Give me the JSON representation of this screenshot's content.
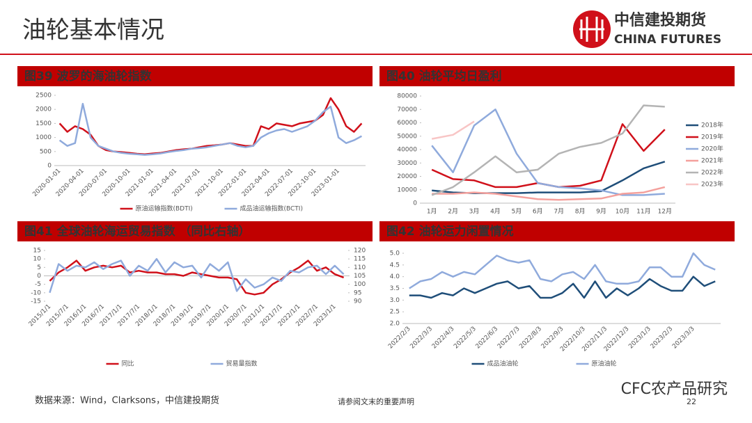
{
  "header": {
    "title": "油轮基本情况",
    "logo_cn": "中信建投期货",
    "logo_en": "CHINA FUTURES"
  },
  "footer": {
    "source": "数据来源：Wind，Clarksons，中信建投期货",
    "disclaimer": "请参阅文末的重要声明",
    "page": "22",
    "watermark": "CFC农产品研究"
  },
  "chart_data": [
    {
      "type": "line",
      "title": "图39 波罗的海油轮指数",
      "legend": "bottom",
      "rotate_x": true,
      "categories": [
        "2020-01-01",
        null,
        null,
        "2020-04-01",
        null,
        null,
        "2020-07-01",
        null,
        null,
        "2020-10-01",
        null,
        null,
        "2021-01-01",
        null,
        null,
        "2021-04-01",
        null,
        null,
        "2021-07-01",
        null,
        null,
        "2021-10-01",
        null,
        null,
        "2022-01-01",
        null,
        null,
        "2022-04-01",
        null,
        null,
        "2022-07-01",
        null,
        null,
        "2022-10-01",
        null,
        null,
        "2023-01-01",
        null,
        null,
        null
      ],
      "ylim": [
        0,
        2500
      ],
      "yticks": [
        0,
        500,
        1000,
        1500,
        2000,
        2500
      ],
      "series": [
        {
          "name": "原油运输指数(BDTI)",
          "color": "#d0101a",
          "values": [
            1500,
            1200,
            1400,
            1300,
            1100,
            700,
            550,
            500,
            480,
            450,
            420,
            400,
            430,
            450,
            500,
            550,
            580,
            600,
            650,
            700,
            720,
            750,
            800,
            750,
            700,
            700,
            1400,
            1300,
            1500,
            1450,
            1400,
            1500,
            1550,
            1600,
            1800,
            2400,
            2000,
            1400,
            1200,
            1500
          ]
        },
        {
          "name": "成品油运输指数(BCTI)",
          "color": "#8faadc",
          "values": [
            900,
            700,
            800,
            2200,
            1000,
            700,
            600,
            500,
            450,
            420,
            400,
            380,
            400,
            430,
            480,
            520,
            550,
            600,
            620,
            650,
            700,
            750,
            800,
            700,
            650,
            700,
            1000,
            1150,
            1250,
            1300,
            1200,
            1300,
            1400,
            1600,
            1900,
            2100,
            1000,
            800,
            900,
            1050
          ]
        }
      ]
    },
    {
      "type": "line",
      "title": "图40 油轮平均日盈利",
      "legend": "right",
      "rotate_x": false,
      "categories": [
        "1月",
        "2月",
        "3月",
        "4月",
        "5月",
        "6月",
        "7月",
        "8月",
        "9月",
        "10月",
        "11月",
        "12月"
      ],
      "ylim": [
        0,
        80000
      ],
      "yticks": [
        0,
        10000,
        20000,
        30000,
        40000,
        50000,
        60000,
        70000,
        80000
      ],
      "series": [
        {
          "name": "2018年",
          "color": "#1f4e79",
          "values": [
            9500,
            8000,
            7500,
            7500,
            7500,
            8000,
            8000,
            8000,
            9000,
            17000,
            26000,
            31000
          ]
        },
        {
          "name": "2019年",
          "color": "#d0101a",
          "values": [
            25000,
            18000,
            17000,
            12000,
            12000,
            15000,
            12000,
            13000,
            17000,
            59000,
            39000,
            55000
          ]
        },
        {
          "name": "2020年",
          "color": "#8faadc",
          "values": [
            43000,
            23000,
            58000,
            70000,
            37000,
            15000,
            12000,
            11000,
            9500,
            6000,
            6000,
            7000
          ]
        },
        {
          "name": "2021年",
          "color": "#f4a09c",
          "values": [
            7000,
            7000,
            8000,
            7000,
            5000,
            3000,
            2500,
            3000,
            3500,
            7000,
            8000,
            12000
          ]
        },
        {
          "name": "2022年",
          "color": "#b4b4b4",
          "values": [
            6000,
            12000,
            23000,
            35000,
            23000,
            25000,
            37000,
            42000,
            45000,
            52000,
            73000,
            72000
          ]
        },
        {
          "name": "2023年",
          "color": "#f8c5c5",
          "values": [
            48000,
            51000,
            61000,
            null,
            null,
            null,
            null,
            null,
            null,
            null,
            null,
            null
          ]
        }
      ]
    },
    {
      "type": "line",
      "title": "图41 全球油轮海运贸易指数 （同比右轴）",
      "legend": "bottom",
      "rotate_x": true,
      "categories": [
        "2015/1/1",
        null,
        "2015/7/1",
        null,
        "2016/1/1",
        null,
        "2016/7/1",
        null,
        "2017/1/1",
        null,
        "2017/7/1",
        null,
        "2018/1/1",
        null,
        "2018/7/1",
        null,
        "2019/1/1",
        null,
        "2019/7/1",
        null,
        "2020/1/1",
        null,
        "2020/7/1",
        null,
        "2021/1/1",
        null,
        "2021/7/1",
        null,
        "2022/1/1",
        null,
        "2022/7/1",
        null,
        "2023/1/1",
        null
      ],
      "ylim": [
        -15,
        15
      ],
      "yticks": [
        -15,
        -10,
        -5,
        0,
        5,
        10,
        15
      ],
      "y2lim": [
        90,
        120
      ],
      "y2ticks": [
        90,
        95,
        100,
        105,
        110,
        115,
        120
      ],
      "series": [
        {
          "name": "同比",
          "color": "#d0101a",
          "values": [
            -3,
            2,
            5,
            9,
            3,
            5,
            6,
            5,
            6,
            2,
            3,
            2,
            2,
            1,
            1,
            0,
            2,
            1,
            0,
            -1,
            -1,
            -2,
            -10,
            -11,
            -10,
            -5,
            -2,
            2,
            5,
            9,
            3,
            5,
            1,
            -1
          ]
        },
        {
          "name": "贸易量指数",
          "color": "#8faadc",
          "axis": "y2",
          "values": [
            95,
            112,
            108,
            111,
            110,
            113,
            109,
            112,
            114,
            105,
            111,
            108,
            115,
            107,
            113,
            110,
            111,
            104,
            112,
            108,
            113,
            96,
            103,
            98,
            100,
            104,
            102,
            108,
            107,
            110,
            111,
            106,
            111,
            106
          ]
        }
      ]
    },
    {
      "type": "line",
      "title": "图42 油轮运力闲置情况",
      "legend": "bottom",
      "rotate_x": true,
      "categories": [
        "2022/2/3",
        null,
        "2022/3/3",
        null,
        "2022/4/3",
        null,
        "2022/5/3",
        null,
        "2022/6/3",
        null,
        "2022/7/3",
        null,
        "2022/8/3",
        null,
        "2022/9/3",
        null,
        "2022/10/3",
        null,
        "2022/11/3",
        null,
        "2022/12/3",
        null,
        "2023/1/3",
        null,
        "2023/2/3",
        null,
        "2023/3/3",
        null,
        null
      ],
      "ylim": [
        2.0,
        5.0
      ],
      "yticks": [
        {
          "value": 2.0,
          "label": "2.0"
        },
        {
          "value": 2.5,
          "label": "2.5"
        },
        {
          "value": 3.0,
          "label": "3.0"
        },
        {
          "value": 3.5,
          "label": "3.5"
        },
        {
          "value": 4.0,
          "label": "4.0"
        },
        {
          "value": 4.5,
          "label": "4.5"
        },
        {
          "value": 5.0,
          "label": "5.0"
        }
      ],
      "series": [
        {
          "name": "成品油油轮",
          "color": "#1f4e79",
          "values": [
            3.2,
            3.2,
            3.1,
            3.3,
            3.2,
            3.5,
            3.3,
            3.5,
            3.7,
            3.8,
            3.5,
            3.6,
            3.1,
            3.1,
            3.3,
            3.7,
            3.1,
            3.8,
            3.1,
            3.5,
            3.2,
            3.5,
            3.9,
            3.6,
            3.4,
            3.4,
            4.0,
            3.6,
            3.8
          ]
        },
        {
          "name": "原油油轮",
          "color": "#8faadc",
          "values": [
            3.5,
            3.8,
            3.9,
            4.2,
            4.0,
            4.2,
            4.1,
            4.5,
            4.9,
            4.7,
            4.6,
            4.7,
            3.9,
            3.8,
            4.1,
            4.2,
            3.9,
            4.5,
            3.8,
            3.7,
            3.7,
            3.8,
            4.4,
            4.4,
            4.0,
            4.0,
            5.0,
            4.5,
            4.3
          ]
        }
      ]
    }
  ]
}
